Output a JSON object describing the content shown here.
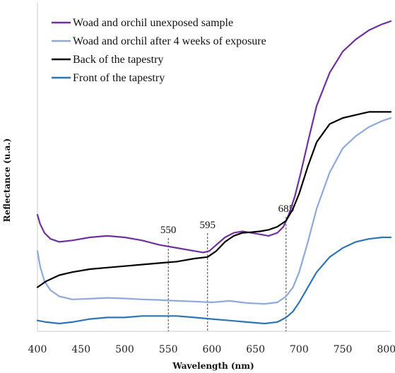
{
  "chart_data": {
    "type": "line",
    "title": "",
    "xlabel": "Wavelength (nm)",
    "ylabel": "Reflectance (u.a.)",
    "xlim": [
      400,
      805
    ],
    "ylim": [
      0,
      1
    ],
    "grid": false,
    "legend_position": "top-left",
    "xticks": [
      "400",
      "450",
      "500",
      "550",
      "600",
      "650",
      "700",
      "750",
      "800"
    ],
    "annotations": [
      {
        "x": 550,
        "label": "550"
      },
      {
        "x": 595,
        "label": "595"
      },
      {
        "x": 685,
        "label": "685"
      }
    ],
    "series": [
      {
        "name": "Woad and orchil unexposed sample",
        "color": "#7030a0",
        "x": [
          400,
          403,
          408,
          415,
          425,
          440,
          460,
          480,
          500,
          520,
          540,
          560,
          580,
          590,
          597,
          605,
          615,
          625,
          635,
          645,
          655,
          665,
          675,
          682,
          688,
          695,
          702,
          710,
          720,
          735,
          750,
          765,
          780,
          795,
          805
        ],
        "y": [
          0.36,
          0.33,
          0.3,
          0.28,
          0.27,
          0.275,
          0.285,
          0.29,
          0.285,
          0.275,
          0.26,
          0.25,
          0.24,
          0.235,
          0.24,
          0.26,
          0.285,
          0.3,
          0.305,
          0.3,
          0.295,
          0.29,
          0.3,
          0.32,
          0.36,
          0.42,
          0.5,
          0.6,
          0.72,
          0.83,
          0.9,
          0.94,
          0.97,
          0.99,
          1.0
        ]
      },
      {
        "name": "Woad and orchil after 4 weeks of exposure",
        "color": "#8eaadb",
        "x": [
          400,
          403,
          408,
          415,
          425,
          440,
          460,
          480,
          500,
          520,
          540,
          560,
          580,
          600,
          620,
          640,
          660,
          675,
          685,
          693,
          700,
          710,
          720,
          735,
          750,
          765,
          780,
          795,
          805
        ],
        "y": [
          0.24,
          0.19,
          0.14,
          0.11,
          0.09,
          0.08,
          0.082,
          0.085,
          0.083,
          0.08,
          0.078,
          0.075,
          0.073,
          0.07,
          0.075,
          0.068,
          0.065,
          0.07,
          0.09,
          0.12,
          0.17,
          0.27,
          0.38,
          0.5,
          0.58,
          0.62,
          0.65,
          0.67,
          0.68
        ]
      },
      {
        "name": "Back of the tapestry",
        "color": "#000000",
        "x": [
          400,
          410,
          425,
          440,
          460,
          480,
          500,
          520,
          540,
          560,
          580,
          595,
          605,
          615,
          625,
          635,
          645,
          655,
          665,
          675,
          685,
          693,
          700,
          710,
          720,
          735,
          750,
          765,
          780,
          795,
          805
        ],
        "y": [
          0.12,
          0.14,
          0.16,
          0.17,
          0.18,
          0.185,
          0.19,
          0.195,
          0.2,
          0.205,
          0.215,
          0.22,
          0.24,
          0.27,
          0.29,
          0.3,
          0.302,
          0.305,
          0.31,
          0.32,
          0.34,
          0.38,
          0.43,
          0.52,
          0.6,
          0.66,
          0.68,
          0.69,
          0.7,
          0.7,
          0.7
        ]
      },
      {
        "name": "Front of the tapestry",
        "color": "#2e75b6",
        "x": [
          400,
          410,
          425,
          440,
          460,
          480,
          500,
          520,
          540,
          560,
          580,
          600,
          620,
          640,
          660,
          675,
          685,
          693,
          700,
          710,
          720,
          735,
          750,
          765,
          780,
          795,
          805
        ],
        "y": [
          0.01,
          0.005,
          0.0,
          0.005,
          0.015,
          0.02,
          0.02,
          0.025,
          0.025,
          0.025,
          0.02,
          0.015,
          0.01,
          0.005,
          0.0,
          0.005,
          0.02,
          0.04,
          0.07,
          0.12,
          0.17,
          0.22,
          0.25,
          0.27,
          0.28,
          0.285,
          0.285
        ]
      }
    ]
  }
}
